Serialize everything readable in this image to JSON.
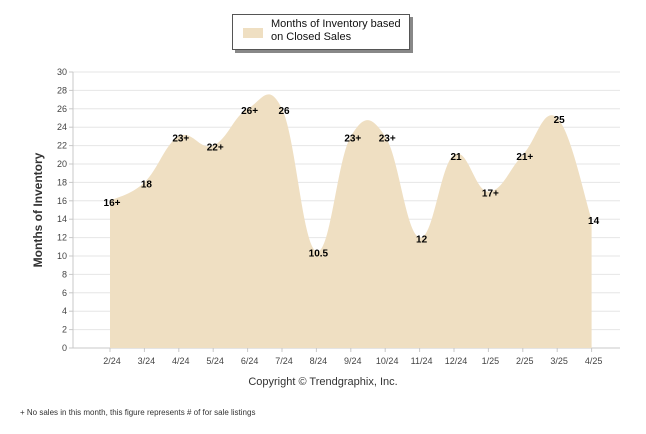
{
  "legend": {
    "label": "Months of Inventory based on Closed Sales"
  },
  "copyright": "Copyright © Trendgraphix, Inc.",
  "footnote": "+  No sales in this month, this figure represents # of for sale listings",
  "colors": {
    "area": "#efdfc2",
    "grid": "#e6e6e6",
    "axis": "#c8c8c8"
  },
  "chart_data": {
    "type": "area",
    "ylabel": "Months of Inventory",
    "ylim": [
      0,
      30
    ],
    "y_ticks": [
      0,
      2,
      4,
      6,
      8,
      10,
      12,
      14,
      16,
      18,
      20,
      22,
      24,
      26,
      28,
      30
    ],
    "grid": true,
    "legend_position": "top-center",
    "categories": [
      "2/24",
      "3/24",
      "4/24",
      "5/24",
      "6/24",
      "7/24",
      "8/24",
      "9/24",
      "10/24",
      "11/24",
      "12/24",
      "1/25",
      "2/25",
      "3/25",
      "4/25"
    ],
    "series": [
      {
        "name": "Months of Inventory based on Closed Sales",
        "values": [
          16,
          18,
          23,
          22,
          26,
          26,
          10.5,
          23,
          23,
          12,
          21,
          17,
          21,
          25,
          14
        ],
        "data_labels": [
          "16+",
          "18",
          "23+",
          "22+",
          "26+",
          "26",
          "10.5",
          "23+",
          "23+",
          "12",
          "21",
          "17+",
          "21+",
          "25",
          "14"
        ]
      }
    ]
  }
}
